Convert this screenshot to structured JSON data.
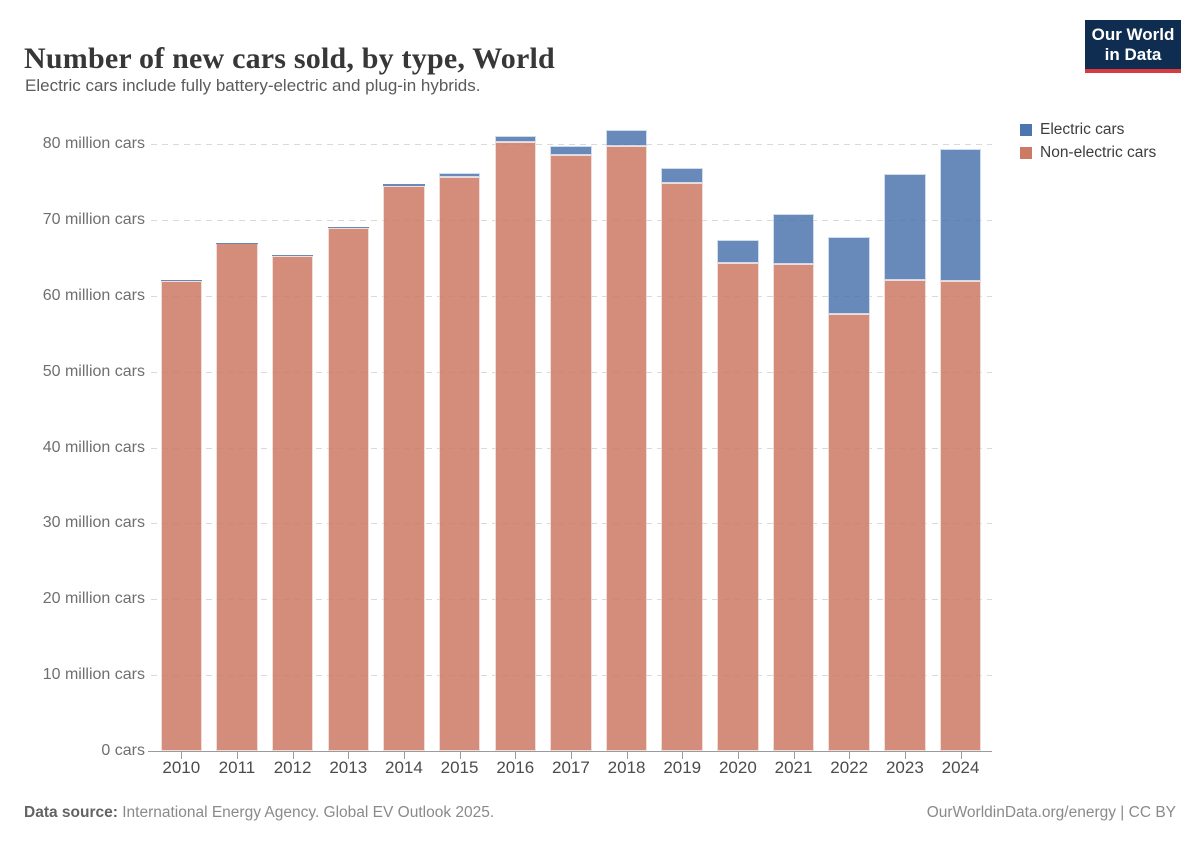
{
  "header": {
    "title": "Number of new cars sold, by type, World",
    "subtitle": "Electric cars include fully battery-electric and plug-in hybrids.",
    "logo": {
      "line1": "Our World",
      "line2": "in Data",
      "bg_color": "#0e2d51",
      "accent_color": "#d93a3f"
    }
  },
  "chart_data": {
    "type": "bar",
    "stacked": true,
    "title": "Number of new cars sold, by type, World",
    "xlabel": "",
    "ylabel": "",
    "categories": [
      "2010",
      "2011",
      "2012",
      "2013",
      "2014",
      "2015",
      "2016",
      "2017",
      "2018",
      "2019",
      "2020",
      "2021",
      "2022",
      "2023",
      "2024"
    ],
    "series": [
      {
        "name": "Electric cars",
        "color": "#4d76ae",
        "values": [
          0.01,
          0.05,
          0.12,
          0.2,
          0.3,
          0.55,
          0.8,
          1.2,
          2.1,
          2.1,
          3.0,
          6.6,
          10.2,
          13.9,
          17.5
        ]
      },
      {
        "name": "Non-electric cars",
        "color": "#cd7a65",
        "values": [
          62.0,
          66.9,
          65.3,
          68.9,
          74.4,
          75.6,
          80.3,
          78.5,
          79.7,
          74.8,
          64.3,
          64.2,
          57.6,
          62.1,
          61.9
        ]
      }
    ],
    "totals": [
      62.0,
      67.0,
      65.4,
      69.1,
      74.7,
      76.2,
      81.1,
      79.7,
      81.8,
      76.9,
      67.3,
      70.8,
      67.8,
      76.0,
      79.4
    ],
    "unit": "million cars",
    "ylim": [
      0,
      80
    ],
    "y_axis": {
      "max_value": 80,
      "ticks": [
        {
          "value": 0,
          "label": "0 cars"
        },
        {
          "value": 10,
          "label": "10 million cars"
        },
        {
          "value": 20,
          "label": "20 million cars"
        },
        {
          "value": 30,
          "label": "30 million cars"
        },
        {
          "value": 40,
          "label": "40 million cars"
        },
        {
          "value": 50,
          "label": "50 million cars"
        },
        {
          "value": 60,
          "label": "60 million cars"
        },
        {
          "value": 70,
          "label": "70 million cars"
        },
        {
          "value": 80,
          "label": "80 million cars"
        }
      ]
    },
    "grid": "dashed horizontal",
    "legend_position": "top-right"
  },
  "footer": {
    "source_label": "Data source:",
    "source_text": " International Energy Agency. Global EV Outlook 2025.",
    "credit": "OurWorldinData.org/energy | CC BY"
  }
}
